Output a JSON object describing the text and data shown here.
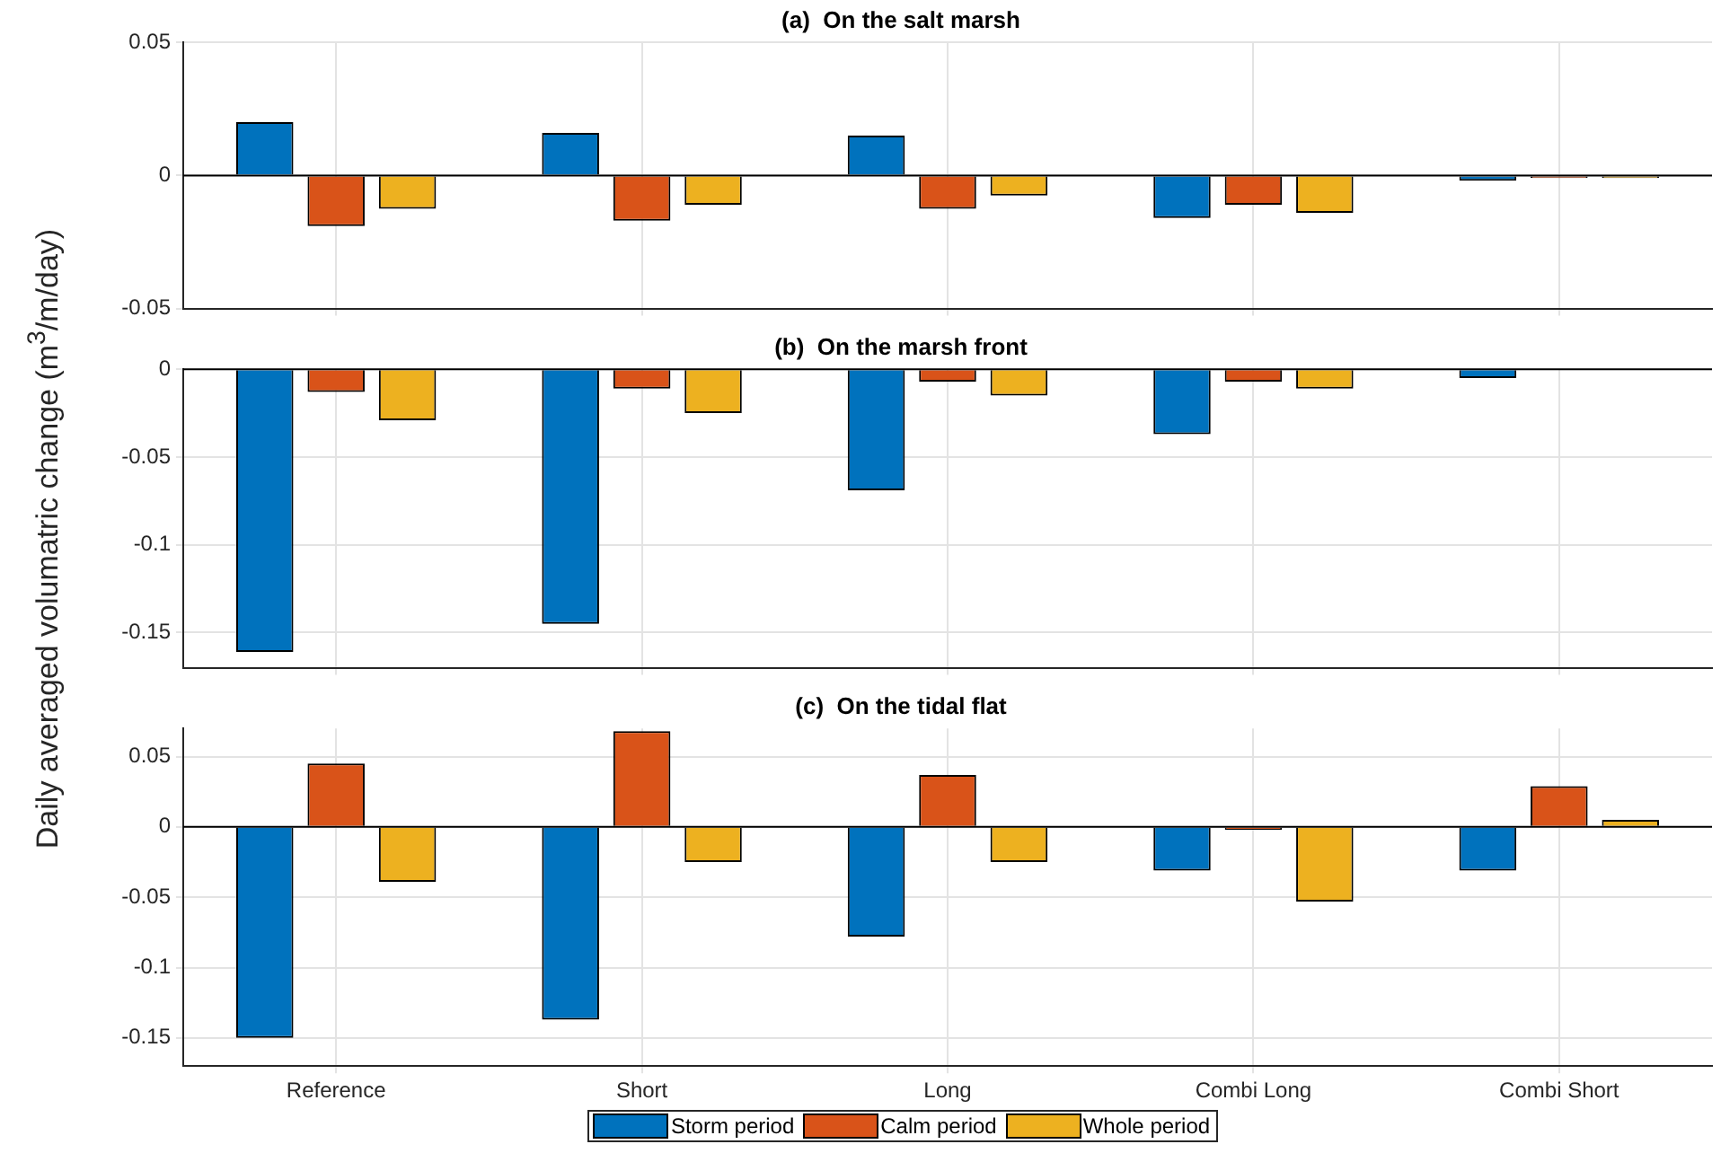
{
  "chart_data": [
    {
      "type": "bar",
      "title": "(a)  On the salt marsh",
      "categories": [
        null,
        null,
        null,
        null,
        null
      ],
      "series": [
        {
          "color": "#0072bd",
          "values": [
            0.02,
            0.016,
            0.015,
            -0.016,
            -0.002
          ]
        },
        {
          "color": "#d95319",
          "values": [
            -0.019,
            -0.017,
            -0.0125,
            -0.011,
            -0.001
          ]
        },
        {
          "color": "#edb120",
          "values": [
            -0.0125,
            -0.011,
            -0.0075,
            -0.014,
            -0.001
          ]
        }
      ],
      "ylim": [
        -0.05,
        0.05
      ],
      "yticks": [
        -0.05,
        0,
        0.05
      ],
      "grid": true,
      "legend": false,
      "tick_labels": "y"
    },
    {
      "type": "bar",
      "title": "(b)  On the marsh front",
      "ylabel": "Daily averaged volumatric change (m$^{3}$/m/day)",
      "categories": [
        null,
        null,
        null,
        null,
        null
      ],
      "series": [
        {
          "color": "#0072bd",
          "values": [
            -0.161,
            -0.145,
            -0.069,
            -0.037,
            -0.005
          ]
        },
        {
          "color": "#d95319",
          "values": [
            -0.013,
            -0.011,
            -0.007,
            -0.007,
            0
          ]
        },
        {
          "color": "#edb120",
          "values": [
            -0.029,
            -0.025,
            -0.015,
            -0.011,
            0
          ]
        }
      ],
      "ylim": [
        -0.17,
        0
      ],
      "yticks": [
        -0.15,
        -0.1,
        -0.05,
        0
      ],
      "grid": true,
      "legend": false,
      "tick_labels": "y"
    },
    {
      "type": "bar",
      "title": "(c)  On the tidal flat",
      "categories": [
        "Reference",
        "Short",
        "Long",
        "Combi Long",
        "Combi Short"
      ],
      "series": [
        {
          "name": "Storm period",
          "color": "#0072bd",
          "values": [
            -0.15,
            -0.137,
            -0.078,
            -0.031,
            -0.031
          ]
        },
        {
          "name": "Calm period",
          "color": "#d95319",
          "values": [
            0.045,
            0.068,
            0.037,
            -0.002,
            0.029
          ]
        },
        {
          "name": "Whole period",
          "color": "#edb120",
          "values": [
            -0.039,
            -0.025,
            -0.025,
            -0.053,
            0.005
          ]
        }
      ],
      "ylim": [
        -0.17,
        0.07
      ],
      "yticks": [
        -0.15,
        -0.1,
        -0.05,
        0,
        0.05
      ],
      "grid": true,
      "legend": "bottom"
    }
  ]
}
